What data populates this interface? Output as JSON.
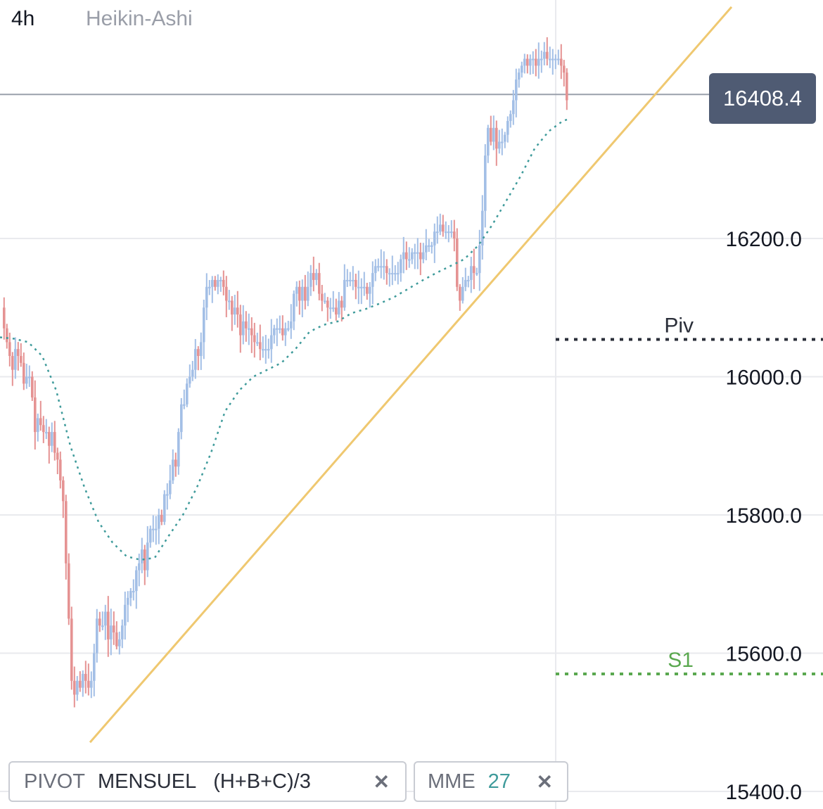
{
  "header": {
    "interval": "4h",
    "chart_type": "Heikin-Ashi"
  },
  "last_price": {
    "label": "16408.4",
    "value": 16408.4,
    "color": "#4f5b73"
  },
  "legend": {
    "pivot": {
      "name": "PIVOT",
      "p1": "MENSUEL",
      "p2": "(H+B+C)/3",
      "close": "✕"
    },
    "mme": {
      "name": "MME",
      "value": "27",
      "close": "✕"
    }
  },
  "pivots": [
    {
      "label": "Piv",
      "value": 16054,
      "color": "#2a2e39"
    },
    {
      "label": "S1",
      "value": 15570,
      "color": "#5aa84f"
    }
  ],
  "colors": {
    "up": "#a3bfe6",
    "down": "#e59393",
    "mme": "#3f9b9b",
    "trendline": "#efc870",
    "price_line": "#9aa0ab",
    "grid": "#e9eaee"
  },
  "chart_data": {
    "type": "candlestick",
    "y_axis": {
      "ticks": [
        15400,
        15600,
        15800,
        16000,
        16200
      ],
      "labels": [
        "15400.0",
        "15600.0",
        "15800.0",
        "16000.0",
        "16200.0"
      ],
      "ylim": [
        15375,
        16535
      ]
    },
    "path": [
      [
        0,
        16100
      ],
      [
        4,
        16070
      ],
      [
        8,
        16050
      ],
      [
        12,
        16030
      ],
      [
        16,
        16010
      ],
      [
        20,
        16040
      ],
      [
        24,
        16030
      ],
      [
        28,
        16020
      ],
      [
        32,
        15990
      ],
      [
        36,
        16000
      ],
      [
        40,
        16000
      ],
      [
        44,
        15970
      ],
      [
        48,
        15920
      ],
      [
        52,
        15940
      ],
      [
        56,
        15930
      ],
      [
        60,
        15920
      ],
      [
        64,
        15920
      ],
      [
        68,
        15900
      ],
      [
        72,
        15920
      ],
      [
        76,
        15890
      ],
      [
        80,
        15880
      ],
      [
        84,
        15850
      ],
      [
        88,
        15820
      ],
      [
        92,
        15730
      ],
      [
        96,
        15650
      ],
      [
        100,
        15560
      ],
      [
        104,
        15540
      ],
      [
        108,
        15560
      ],
      [
        112,
        15550
      ],
      [
        116,
        15570
      ],
      [
        120,
        15560
      ],
      [
        124,
        15550
      ],
      [
        128,
        15560
      ],
      [
        132,
        15600
      ],
      [
        136,
        15650
      ],
      [
        140,
        15640
      ],
      [
        144,
        15640
      ],
      [
        148,
        15660
      ],
      [
        152,
        15620
      ],
      [
        156,
        15640
      ],
      [
        160,
        15630
      ],
      [
        164,
        15610
      ],
      [
        168,
        15620
      ],
      [
        172,
        15640
      ],
      [
        176,
        15670
      ],
      [
        180,
        15680
      ],
      [
        184,
        15690
      ],
      [
        188,
        15690
      ],
      [
        192,
        15720
      ],
      [
        196,
        15730
      ],
      [
        200,
        15750
      ],
      [
        204,
        15720
      ],
      [
        208,
        15760
      ],
      [
        212,
        15780
      ],
      [
        216,
        15780
      ],
      [
        220,
        15780
      ],
      [
        224,
        15800
      ],
      [
        228,
        15790
      ],
      [
        232,
        15830
      ],
      [
        236,
        15830
      ],
      [
        240,
        15850
      ],
      [
        244,
        15880
      ],
      [
        248,
        15870
      ],
      [
        252,
        15920
      ],
      [
        256,
        15960
      ],
      [
        260,
        15960
      ],
      [
        264,
        15990
      ],
      [
        268,
        16000
      ],
      [
        272,
        16010
      ],
      [
        276,
        16040
      ],
      [
        280,
        16030
      ],
      [
        284,
        16050
      ],
      [
        288,
        16100
      ],
      [
        292,
        16130
      ],
      [
        296,
        16130
      ],
      [
        300,
        16140
      ],
      [
        304,
        16130
      ],
      [
        308,
        16140
      ],
      [
        312,
        16140
      ],
      [
        316,
        16130
      ],
      [
        320,
        16110
      ],
      [
        324,
        16110
      ],
      [
        328,
        16090
      ],
      [
        332,
        16100
      ],
      [
        336,
        16090
      ],
      [
        340,
        16060
      ],
      [
        344,
        16080
      ],
      [
        348,
        16070
      ],
      [
        352,
        16070
      ],
      [
        356,
        16060
      ],
      [
        360,
        16050
      ],
      [
        364,
        16050
      ],
      [
        368,
        16040
      ],
      [
        372,
        16040
      ],
      [
        376,
        16040
      ],
      [
        380,
        16040
      ],
      [
        384,
        16060
      ],
      [
        388,
        16070
      ],
      [
        392,
        16070
      ],
      [
        396,
        16070
      ],
      [
        400,
        16060
      ],
      [
        404,
        16070
      ],
      [
        408,
        16070
      ],
      [
        412,
        16080
      ],
      [
        416,
        16120
      ],
      [
        420,
        16130
      ],
      [
        424,
        16110
      ],
      [
        428,
        16130
      ],
      [
        432,
        16110
      ],
      [
        436,
        16130
      ],
      [
        440,
        16150
      ],
      [
        444,
        16140
      ],
      [
        448,
        16150
      ],
      [
        452,
        16120
      ],
      [
        456,
        16110
      ],
      [
        460,
        16110
      ],
      [
        464,
        16100
      ],
      [
        468,
        16100
      ],
      [
        472,
        16100
      ],
      [
        476,
        16090
      ],
      [
        480,
        16110
      ],
      [
        484,
        16100
      ],
      [
        488,
        16140
      ],
      [
        492,
        16140
      ],
      [
        496,
        16140
      ],
      [
        500,
        16140
      ],
      [
        504,
        16130
      ],
      [
        508,
        16130
      ],
      [
        512,
        16130
      ],
      [
        516,
        16130
      ],
      [
        520,
        16120
      ],
      [
        524,
        16130
      ],
      [
        528,
        16150
      ],
      [
        532,
        16160
      ],
      [
        536,
        16160
      ],
      [
        540,
        16160
      ],
      [
        544,
        16160
      ],
      [
        548,
        16150
      ],
      [
        552,
        16150
      ],
      [
        556,
        16150
      ],
      [
        560,
        16150
      ],
      [
        564,
        16150
      ],
      [
        568,
        16170
      ],
      [
        572,
        16180
      ],
      [
        576,
        16170
      ],
      [
        580,
        16170
      ],
      [
        584,
        16180
      ],
      [
        588,
        16180
      ],
      [
        592,
        16180
      ],
      [
        596,
        16170
      ],
      [
        600,
        16180
      ],
      [
        604,
        16190
      ],
      [
        608,
        16190
      ],
      [
        612,
        16190
      ],
      [
        616,
        16210
      ],
      [
        620,
        16210
      ],
      [
        624,
        16220
      ],
      [
        628,
        16210
      ],
      [
        632,
        16210
      ],
      [
        636,
        16210
      ],
      [
        640,
        16210
      ],
      [
        644,
        16200
      ],
      [
        648,
        16130
      ],
      [
        652,
        16110
      ],
      [
        656,
        16130
      ],
      [
        660,
        16140
      ],
      [
        664,
        16140
      ],
      [
        668,
        16160
      ],
      [
        672,
        16150
      ],
      [
        676,
        16150
      ],
      [
        680,
        16190
      ],
      [
        684,
        16240
      ],
      [
        688,
        16320
      ],
      [
        692,
        16360
      ],
      [
        696,
        16340
      ],
      [
        700,
        16360
      ],
      [
        704,
        16330
      ],
      [
        708,
        16340
      ],
      [
        712,
        16340
      ],
      [
        716,
        16350
      ],
      [
        720,
        16370
      ],
      [
        724,
        16380
      ],
      [
        728,
        16400
      ],
      [
        732,
        16430
      ],
      [
        736,
        16440
      ],
      [
        740,
        16450
      ],
      [
        744,
        16460
      ],
      [
        748,
        16450
      ],
      [
        752,
        16460
      ],
      [
        756,
        16460
      ],
      [
        760,
        16450
      ],
      [
        764,
        16460
      ],
      [
        768,
        16460
      ],
      [
        772,
        16470
      ],
      [
        776,
        16460
      ],
      [
        780,
        16460
      ],
      [
        784,
        16460
      ],
      [
        788,
        16460
      ],
      [
        792,
        16460
      ],
      [
        796,
        16450
      ],
      [
        800,
        16440
      ],
      [
        804,
        16400
      ]
    ],
    "mme": [
      [
        0,
        16057
      ],
      [
        20,
        16055
      ],
      [
        40,
        16050
      ],
      [
        60,
        16030
      ],
      [
        80,
        15980
      ],
      [
        100,
        15900
      ],
      [
        120,
        15840
      ],
      [
        140,
        15790
      ],
      [
        160,
        15760
      ],
      [
        180,
        15740
      ],
      [
        200,
        15735
      ],
      [
        220,
        15738
      ],
      [
        240,
        15770
      ],
      [
        260,
        15800
      ],
      [
        280,
        15840
      ],
      [
        300,
        15890
      ],
      [
        320,
        15950
      ],
      [
        340,
        15980
      ],
      [
        360,
        16000
      ],
      [
        380,
        16010
      ],
      [
        400,
        16020
      ],
      [
        420,
        16040
      ],
      [
        440,
        16065
      ],
      [
        460,
        16075
      ],
      [
        480,
        16080
      ],
      [
        500,
        16092
      ],
      [
        520,
        16098
      ],
      [
        540,
        16106
      ],
      [
        560,
        16115
      ],
      [
        580,
        16127
      ],
      [
        600,
        16139
      ],
      [
        620,
        16150
      ],
      [
        640,
        16160
      ],
      [
        660,
        16170
      ],
      [
        680,
        16190
      ],
      [
        700,
        16220
      ],
      [
        720,
        16255
      ],
      [
        740,
        16290
      ],
      [
        760,
        16330
      ],
      [
        780,
        16355
      ],
      [
        800,
        16370
      ],
      [
        806,
        16372
      ]
    ],
    "trendline": {
      "from": [
        128,
        15471
      ],
      "to": [
        1040,
        16535
      ]
    },
    "last_close": 16408.4
  }
}
